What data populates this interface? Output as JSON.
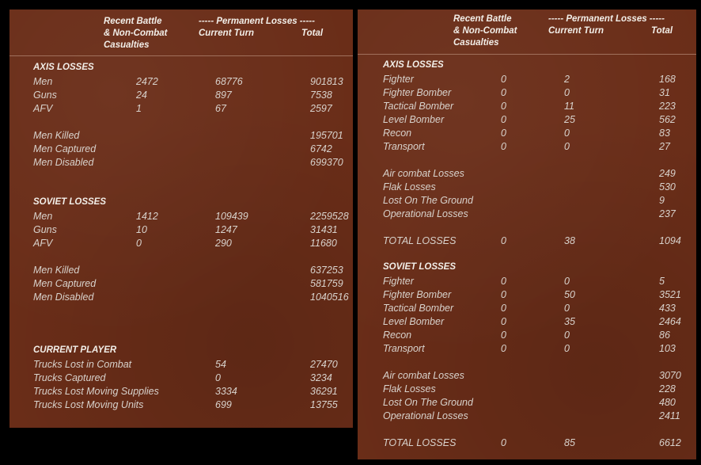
{
  "left": {
    "header": {
      "battle": [
        "Recent Battle",
        "& Non-Combat",
        "Casualties"
      ],
      "permanent": "----- Permanent Losses -----",
      "turn": "Current Turn",
      "total": "Total"
    },
    "sections": [
      {
        "title": "AXIS LOSSES",
        "groups": [
          [
            {
              "label": "Men",
              "battle": "2472",
              "turn": "68776",
              "total": "901813"
            },
            {
              "label": "Guns",
              "battle": "24",
              "turn": "897",
              "total": "7538"
            },
            {
              "label": "AFV",
              "battle": "1",
              "turn": "67",
              "total": "2597"
            }
          ],
          [
            {
              "label": "Men Killed",
              "total": "195701"
            },
            {
              "label": "Men Captured",
              "total": "6742"
            },
            {
              "label": "Men Disabled",
              "total": "699370"
            }
          ]
        ]
      },
      {
        "title": "SOVIET LOSSES",
        "groups": [
          [
            {
              "label": "Men",
              "battle": "1412",
              "turn": "109439",
              "total": "2259528"
            },
            {
              "label": "Guns",
              "battle": "10",
              "turn": "1247",
              "total": "31431"
            },
            {
              "label": "AFV",
              "battle": "0",
              "turn": "290",
              "total": "11680"
            }
          ],
          [
            {
              "label": "Men Killed",
              "total": "637253"
            },
            {
              "label": "Men Captured",
              "total": "581759"
            },
            {
              "label": "Men Disabled",
              "total": "1040516"
            }
          ]
        ]
      },
      {
        "title": "CURRENT PLAYER",
        "groups": [
          [
            {
              "label": "Trucks Lost in Combat",
              "turn": "54",
              "total": "27470"
            },
            {
              "label": "Trucks Captured",
              "turn": "0",
              "total": "3234"
            },
            {
              "label": "Trucks Lost Moving Supplies",
              "turn": "3334",
              "total": "36291"
            },
            {
              "label": "Trucks Lost Moving Units",
              "turn": "699",
              "total": "13755"
            }
          ]
        ]
      }
    ]
  },
  "right": {
    "header": {
      "battle": [
        "Recent Battle",
        "& Non-Combat",
        "Casualties"
      ],
      "permanent": "----- Permanent Losses -----",
      "turn": "Current Turn",
      "total": "Total"
    },
    "sections": [
      {
        "title": "AXIS LOSSES",
        "groups": [
          [
            {
              "label": "Fighter",
              "battle": "0",
              "turn": "2",
              "total": "168"
            },
            {
              "label": "Fighter Bomber",
              "battle": "0",
              "turn": "0",
              "total": "31"
            },
            {
              "label": "Tactical Bomber",
              "battle": "0",
              "turn": "11",
              "total": "223"
            },
            {
              "label": "Level Bomber",
              "battle": "0",
              "turn": "25",
              "total": "562"
            },
            {
              "label": "Recon",
              "battle": "0",
              "turn": "0",
              "total": "83"
            },
            {
              "label": "Transport",
              "battle": "0",
              "turn": "0",
              "total": "27"
            }
          ],
          [
            {
              "label": "Air combat Losses",
              "total": "249"
            },
            {
              "label": "Flak Losses",
              "total": "530"
            },
            {
              "label": "Lost On The Ground",
              "total": "9"
            },
            {
              "label": "Operational Losses",
              "total": "237"
            }
          ],
          [
            {
              "label": "TOTAL LOSSES",
              "battle": "0",
              "turn": "38",
              "total": "1094"
            }
          ]
        ]
      },
      {
        "title": "SOVIET LOSSES",
        "groups": [
          [
            {
              "label": "Fighter",
              "battle": "0",
              "turn": "0",
              "total": "5"
            },
            {
              "label": "Fighter Bomber",
              "battle": "0",
              "turn": "50",
              "total": "3521"
            },
            {
              "label": "Tactical Bomber",
              "battle": "0",
              "turn": "0",
              "total": "433"
            },
            {
              "label": "Level Bomber",
              "battle": "0",
              "turn": "35",
              "total": "2464"
            },
            {
              "label": "Recon",
              "battle": "0",
              "turn": "0",
              "total": "86"
            },
            {
              "label": "Transport",
              "battle": "0",
              "turn": "0",
              "total": "103"
            }
          ],
          [
            {
              "label": "Air combat Losses",
              "total": "3070"
            },
            {
              "label": "Flak Losses",
              "total": "228"
            },
            {
              "label": "Lost On The Ground",
              "total": "480"
            },
            {
              "label": "Operational Losses",
              "total": "2411"
            }
          ],
          [
            {
              "label": "TOTAL LOSSES",
              "battle": "0",
              "turn": "85",
              "total": "6612"
            }
          ]
        ]
      }
    ]
  }
}
